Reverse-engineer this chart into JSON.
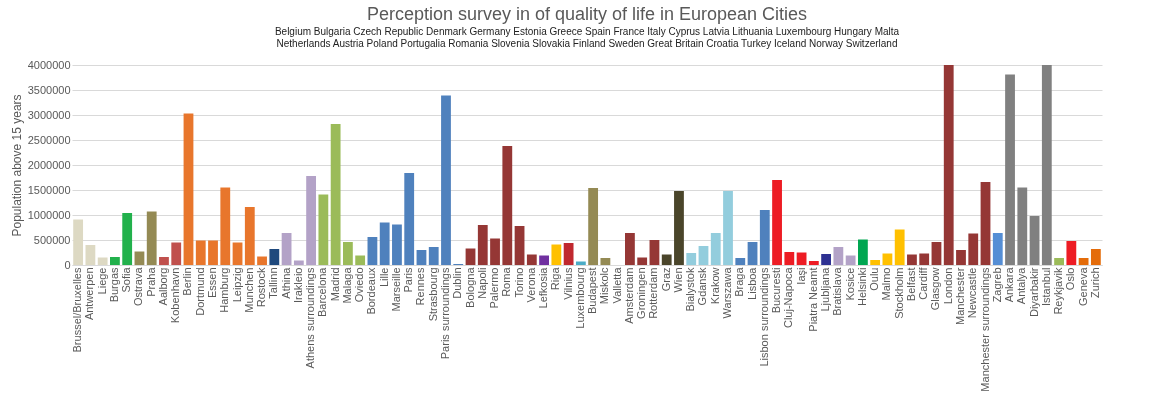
{
  "chart_data": {
    "type": "bar",
    "title": "Perception survey in  of quality of life in European Cities",
    "ylabel": "Population above 15 years",
    "categories": [
      "Brussel/Bruxelles",
      "Antwerpen",
      "Liege",
      "Burgas",
      "Sofia",
      "Ostrava",
      "Praha",
      "Aalborg",
      "Kobenhavn",
      "Berlin",
      "Dortmund",
      "Essen",
      "Hamburg",
      "Leipzig",
      "Munchen",
      "Rostock",
      "Tallinn",
      "Athina",
      "Irakleio",
      "Athens surroundings",
      "Barcelona",
      "Madrid",
      "Malaga",
      "Oviedo",
      "Bordeaux",
      "Lille",
      "Marseille",
      "Paris",
      "Rennes",
      "Strasbourg",
      "Paris surroundings",
      "Dublin",
      "Bologna",
      "Napoli",
      "Palermo",
      "Roma",
      "Torino",
      "Verona",
      "Lefkosia",
      "Riga",
      "Vilnius",
      "Luxembourg",
      "Budapest",
      "Miskolc",
      "Valletta",
      "Amsterdam",
      "Groningen",
      "Rotterdam",
      "Graz",
      "Wien",
      "Bialystok",
      "Gdansk",
      "Krakow",
      "Warszawa",
      "Braga",
      "Lisboa",
      "Lisbon surroundings",
      "Bucuresti",
      "Cluj-Napoca",
      "Iaşi",
      "Piatra Neamt",
      "Ljubljana",
      "Bratislava",
      "Kosice",
      "Helsinki",
      "Oulu",
      "Malmo",
      "Stockholm",
      "Belfast",
      "Cardiff",
      "Glasgow",
      "London",
      "Manchester",
      "Newcastle",
      "Manchester surroundings",
      "Zagreb",
      "Ankara",
      "Antalya",
      "Diyarbakir",
      "Istanbul",
      "Reykjavik",
      "Oslo",
      "Geneva",
      "Zurich"
    ],
    "values": [
      910000,
      400000,
      150000,
      160000,
      1040000,
      270000,
      1070000,
      160000,
      450000,
      3030000,
      490000,
      490000,
      1550000,
      450000,
      1160000,
      170000,
      320000,
      640000,
      90000,
      1780000,
      1410000,
      2820000,
      460000,
      190000,
      560000,
      850000,
      810000,
      1840000,
      300000,
      360000,
      3390000,
      20000,
      330000,
      800000,
      530000,
      2380000,
      780000,
      210000,
      190000,
      410000,
      440000,
      70000,
      1540000,
      140000,
      null,
      640000,
      150000,
      500000,
      210000,
      1480000,
      240000,
      380000,
      640000,
      1480000,
      140000,
      460000,
      1100000,
      1700000,
      260000,
      250000,
      80000,
      220000,
      360000,
      190000,
      510000,
      100000,
      230000,
      710000,
      210000,
      230000,
      460000,
      4000000,
      300000,
      630000,
      1660000,
      640000,
      3810000,
      1550000,
      980000,
      4000000,
      140000,
      480000,
      140000,
      320000
    ],
    "colors": [
      "#ddd9c3",
      "#ddd9c3",
      "#ddd9c3",
      "#22b14c",
      "#22b14c",
      "#948a54",
      "#948a54",
      "#c0504d",
      "#c0504d",
      "#e8762c",
      "#e8762c",
      "#e8762c",
      "#e8762c",
      "#e8762c",
      "#e8762c",
      "#e8762c",
      "#1f497d",
      "#b3a2c7",
      "#b3a2c7",
      "#b3a2c7",
      "#9bbb59",
      "#9bbb59",
      "#9bbb59",
      "#9bbb59",
      "#4f81bd",
      "#4f81bd",
      "#4f81bd",
      "#4f81bd",
      "#4f81bd",
      "#4f81bd",
      "#4f81bd",
      "#4f81bd",
      "#953735",
      "#953735",
      "#953735",
      "#953735",
      "#953735",
      "#953735",
      "#7030a0",
      "#ffc000",
      "#c0282e",
      "#4bacc6",
      "#948a54",
      "#948a54",
      "#ffffff",
      "#953735",
      "#953735",
      "#953735",
      "#4a452a",
      "#4a452a",
      "#93cddd",
      "#93cddd",
      "#93cddd",
      "#93cddd",
      "#4f81bd",
      "#4f81bd",
      "#4f81bd",
      "#ed1c24",
      "#ed1c24",
      "#ed1c24",
      "#ed1c24",
      "#2e3192",
      "#b3a2c7",
      "#b3a2c7",
      "#00a651",
      "#ffc000",
      "#ffc000",
      "#ffc000",
      "#953735",
      "#953735",
      "#953735",
      "#953735",
      "#953735",
      "#953735",
      "#953735",
      "#558ed5",
      "#808080",
      "#808080",
      "#808080",
      "#808080",
      "#9bbb59",
      "#ed1c24",
      "#e46c0a",
      "#e46c0a"
    ],
    "ylim": [
      0,
      4000000
    ],
    "yticks": [
      0,
      500000,
      1000000,
      1500000,
      2000000,
      2500000,
      3000000,
      3500000,
      4000000
    ],
    "grid": "y",
    "annotations": [
      "Belgium",
      "Bulgaria",
      "Czech Republic",
      "Denmark",
      "Germany",
      "Estonia",
      "Greece",
      "Spain",
      "France",
      "Italy",
      "Cyprus",
      "Latvia",
      "Lithuania",
      "Luxembourg",
      "Hungary",
      "Malta",
      "Netherlands",
      "Austria",
      "Poland",
      "Portugalia",
      "Romania",
      "Slovenia",
      "Slovakia",
      "Finland",
      "Sweden",
      "Great Britain",
      "Croatia",
      "Turkey",
      "Iceland",
      "Norway",
      "Switzerland"
    ]
  }
}
